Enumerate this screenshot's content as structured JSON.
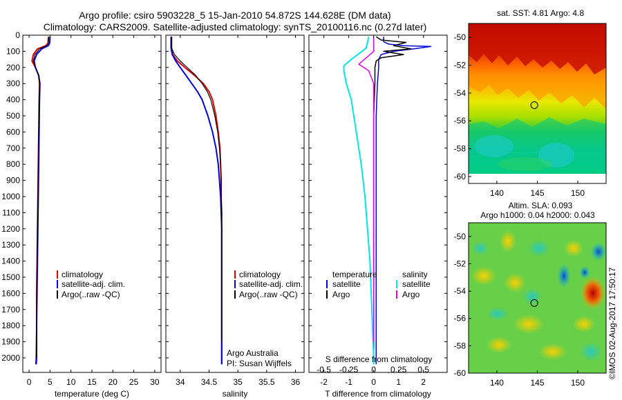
{
  "header": {
    "title_line1": "Argo profile: csiro 5903228_5 15-Jan-2010 54.872S 144.628E (DM data)",
    "title_line2": "Climatology: CARS2009. Satellite-adjusted climatology: synTS_20100116.nc (0.27d later)"
  },
  "colors": {
    "climatology": "#dd0000",
    "satellite": "#0000dd",
    "argo": "#000000",
    "sal_satellite": "#00e5e5",
    "sal_argo": "#e000e0"
  },
  "chart_data": [
    {
      "type": "line",
      "id": "temperature",
      "xlabel": "temperature (deg C)",
      "ylabel": "",
      "xlim": [
        -1.5,
        31.5
      ],
      "xticks": [
        0,
        5,
        10,
        15,
        20,
        25,
        30
      ],
      "ylim": [
        2090,
        0
      ],
      "yticks": [
        0,
        100,
        200,
        300,
        400,
        500,
        600,
        700,
        800,
        900,
        1000,
        1100,
        1200,
        1300,
        1400,
        1500,
        1600,
        1700,
        1800,
        1900,
        2000
      ],
      "legend": [
        "climatology",
        "satellite-adj. clim.",
        "Argo(..raw -QC)"
      ],
      "series": [
        {
          "name": "climatology",
          "color": "#dd0000",
          "width": 2,
          "x": [
            4.6,
            4.5,
            4.0,
            2.0,
            1.0,
            0.7,
            1.5,
            2.3,
            2.5,
            2.4,
            2.3,
            2.2,
            2.1,
            2.0,
            1.9,
            1.8,
            1.8,
            1.7,
            1.6
          ],
          "y": [
            10,
            50,
            65,
            85,
            120,
            160,
            200,
            250,
            300,
            400,
            600,
            800,
            1000,
            1200,
            1400,
            1600,
            1800,
            2000,
            2040
          ]
        },
        {
          "name": "satellite-adj. clim.",
          "color": "#0000dd",
          "width": 2,
          "x": [
            5.0,
            4.9,
            4.6,
            3.0,
            1.8,
            1.2,
            1.5,
            2.3,
            2.6,
            2.5,
            2.4,
            2.3,
            2.2,
            2.1,
            2.0,
            1.9,
            1.8,
            1.8,
            1.7
          ],
          "y": [
            10,
            50,
            65,
            85,
            120,
            160,
            200,
            250,
            300,
            400,
            600,
            800,
            1000,
            1200,
            1400,
            1600,
            1800,
            2000,
            2040
          ]
        },
        {
          "name": "Argo(..raw -QC)",
          "color": "#000000",
          "width": 1.2,
          "x": [
            4.7,
            4.6,
            4.2,
            2.5,
            1.4,
            1.0,
            1.6,
            2.3,
            2.5,
            2.4,
            2.3,
            2.2,
            2.1,
            2.0,
            1.9,
            1.8,
            1.8,
            1.7
          ],
          "y": [
            10,
            50,
            65,
            85,
            120,
            160,
            200,
            250,
            300,
            400,
            600,
            800,
            1000,
            1200,
            1400,
            1600,
            1800,
            2000
          ]
        }
      ]
    },
    {
      "type": "line",
      "id": "salinity",
      "xlabel": "salinity",
      "ylabel": "",
      "xlim": [
        33.75,
        36.15
      ],
      "xticks": [
        34,
        34.5,
        35,
        35.5,
        36
      ],
      "ylim": [
        2090,
        0
      ],
      "legend": [
        "climatology",
        "satellite-adj. clim.",
        "Argo(..raw -QC)"
      ],
      "credit": [
        "Argo Australia",
        "PI: Susan Wijffels"
      ],
      "series": [
        {
          "name": "climatology",
          "color": "#dd0000",
          "width": 2,
          "x": [
            33.85,
            33.85,
            33.87,
            33.95,
            34.08,
            34.25,
            34.4,
            34.5,
            34.56,
            34.62,
            34.66,
            34.69,
            34.7,
            34.71,
            34.71,
            34.72,
            34.72,
            34.72,
            34.72,
            34.72,
            34.72,
            34.72,
            34.72,
            34.72
          ],
          "y": [
            10,
            80,
            120,
            160,
            200,
            250,
            300,
            350,
            400,
            500,
            600,
            700,
            800,
            900,
            1000,
            1100,
            1200,
            1300,
            1400,
            1500,
            1600,
            1800,
            2000,
            2040
          ]
        },
        {
          "name": "satellite-adj. clim.",
          "color": "#0000dd",
          "width": 2,
          "x": [
            33.84,
            33.84,
            33.86,
            33.92,
            34.0,
            34.1,
            34.2,
            34.3,
            34.38,
            34.48,
            34.56,
            34.62,
            34.66,
            34.68,
            34.7,
            34.71,
            34.72,
            34.72,
            34.72,
            34.72,
            34.72,
            34.72,
            34.72,
            34.72
          ],
          "y": [
            10,
            80,
            120,
            160,
            200,
            250,
            300,
            350,
            400,
            500,
            600,
            700,
            800,
            900,
            1000,
            1100,
            1200,
            1300,
            1400,
            1500,
            1600,
            1800,
            2000,
            2040
          ]
        },
        {
          "name": "Argo(..raw -QC)",
          "color": "#000000",
          "width": 1.2,
          "x": [
            33.85,
            33.85,
            33.9,
            34.0,
            34.12,
            34.27,
            34.38,
            34.47,
            34.53,
            34.6,
            34.65,
            34.68,
            34.7,
            34.71,
            34.71,
            34.72,
            34.72,
            34.72,
            34.72,
            34.72,
            34.72,
            34.72
          ],
          "y": [
            10,
            80,
            120,
            160,
            200,
            250,
            300,
            350,
            400,
            500,
            600,
            700,
            800,
            900,
            1000,
            1100,
            1200,
            1300,
            1400,
            1500,
            1600,
            1900
          ]
        }
      ]
    },
    {
      "type": "line",
      "id": "difference",
      "xlabel": "T difference from climatology",
      "xlabel_top": "S difference from climatology",
      "xlim": [
        -2.6,
        2.95
      ],
      "xticks_T": [
        -2,
        -1,
        0,
        1,
        2
      ],
      "xticks_S": [
        "-0.5",
        "-0.25",
        "0",
        "0.25",
        "0.5"
      ],
      "xticks_S_pos": [
        -2.0,
        -1.0,
        0.0,
        1.0,
        2.0
      ],
      "ylim": [
        2090,
        0
      ],
      "legend": {
        "temperature": "temperature",
        "salinity": "salinity",
        "satellite": "satellite",
        "argo": "Argo"
      },
      "series": [
        {
          "name": "T satellite",
          "color": "#0000dd",
          "width": 1.5,
          "x": [
            0.4,
            0.4,
            0.6,
            1.2,
            2.3,
            1.6,
            0.8,
            0.3,
            0.2,
            0.2,
            0.15,
            0.1,
            0.1,
            0.1,
            0.1,
            0.1,
            0.1,
            0.1
          ],
          "y": [
            10,
            40,
            55,
            65,
            70,
            85,
            100,
            120,
            150,
            200,
            300,
            500,
            800,
            1100,
            1400,
            1700,
            2000,
            2040
          ]
        },
        {
          "name": "T Argo",
          "color": "#000000",
          "width": 1.5,
          "x": [
            0.1,
            0.3,
            1.3,
            0.8,
            1.5,
            0.4,
            1.2,
            0.3,
            0.1,
            0.05,
            0.05,
            0.0,
            0.0,
            0.0,
            0.0,
            0.0,
            0.0
          ],
          "y": [
            10,
            30,
            45,
            65,
            85,
            100,
            120,
            140,
            160,
            200,
            300,
            500,
            800,
            1200,
            1600,
            1900,
            1950
          ]
        },
        {
          "name": "S satellite",
          "color": "#00e5e5",
          "width": 2,
          "x": [
            -0.2,
            -0.3,
            -0.9,
            -1.2,
            -1.2,
            -1.1,
            -0.9,
            -0.7,
            -0.5,
            -0.35,
            -0.25,
            -0.15,
            -0.1,
            -0.05,
            0.0,
            0.0
          ],
          "y": [
            10,
            80,
            150,
            190,
            220,
            300,
            400,
            600,
            800,
            1000,
            1200,
            1400,
            1600,
            1800,
            2000,
            2040
          ]
        },
        {
          "name": "S Argo",
          "color": "#e000e0",
          "width": 1.5,
          "x": [
            0.0,
            0.0,
            -0.3,
            -0.6,
            -0.2,
            0.0,
            0.0,
            0.0,
            0.0,
            0.0
          ],
          "y": [
            10,
            100,
            140,
            180,
            220,
            300,
            500,
            800,
            1200,
            1900
          ]
        }
      ]
    },
    {
      "type": "heatmap",
      "id": "sst_map",
      "title": "sat. SST: 4.81 Argo: 4.8",
      "xticks": [
        140,
        145,
        150
      ],
      "yticks": [
        -50,
        -52,
        -54,
        -56,
        -58,
        -60
      ],
      "xlim": [
        136.5,
        153.5
      ],
      "ylim": [
        -60.5,
        -49
      ],
      "marker": {
        "lon": 144.628,
        "lat": -54.872
      }
    },
    {
      "type": "heatmap",
      "id": "sla_map",
      "title_line1": "Altim. SLA: 0.093",
      "title_line2": "Argo h1000: 0.04 h2000: 0.043",
      "xticks": [
        140,
        145,
        150
      ],
      "yticks": [
        -50,
        -52,
        -54,
        -56,
        -58,
        -60
      ],
      "xlim": [
        136.5,
        153.5
      ],
      "ylim": [
        -60,
        -49
      ],
      "marker": {
        "lon": 144.628,
        "lat": -54.872
      }
    }
  ],
  "footer": {
    "stamp": "©IMOS 02-Aug-2017 17:50:17"
  }
}
